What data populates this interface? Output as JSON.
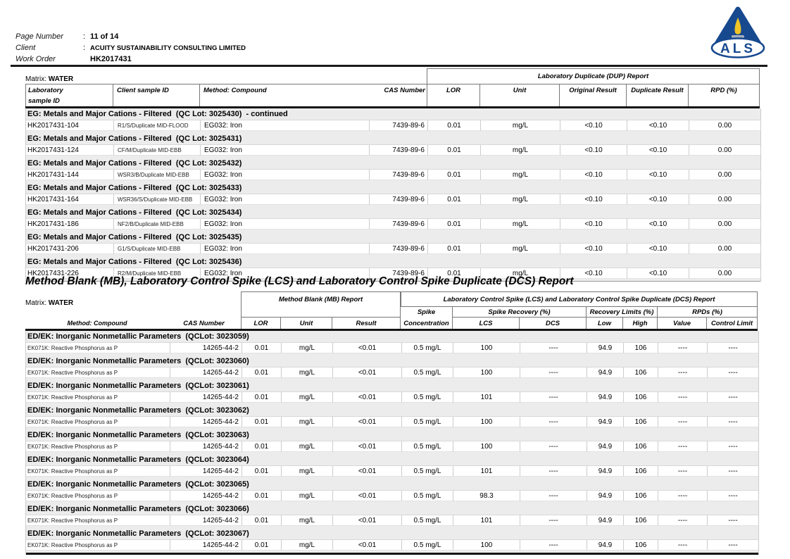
{
  "header": {
    "rows": [
      {
        "label": "Page Number",
        "colon": ":",
        "value": "11 of 14"
      },
      {
        "label": "Client",
        "colon": ":",
        "value": "ACUITY SUSTAINABILITY CONSULTING LIMITED"
      },
      {
        "label": "Work Order",
        "colon": "",
        "value": "HK2017431"
      }
    ],
    "logo_text": "ALS",
    "logo_colors": {
      "blue": "#17498f",
      "flame_yellow": "#f0c425",
      "candle_gray": "#9aa5b5"
    }
  },
  "dup_table": {
    "matrix_label": "Matrix:",
    "matrix_value": "WATER",
    "group_band_title": "Laboratory Duplicate (DUP) Report",
    "columns": {
      "lab_id_line1": "Laboratory",
      "lab_id_line2": "sample ID",
      "client_id": "Client sample ID",
      "method": "Method: Compound",
      "cas": "CAS Number",
      "lor": "LOR",
      "unit": "Unit",
      "original": "Original Result",
      "duplicate": "Duplicate Result",
      "rpd": "RPD (%)"
    },
    "groups": [
      {
        "title": "EG: Metals and Major Cations - Filtered  (QC Lot: 3025430)  - continued",
        "rows": [
          {
            "lab_id": "HK2017431-104",
            "client_id": "R1/S/Duplicate MID-FLOOD",
            "method": "EG032: Iron",
            "cas": "7439-89-6",
            "lor": "0.01",
            "unit": "mg/L",
            "original": "<0.10",
            "duplicate": "<0.10",
            "rpd": "0.00"
          }
        ]
      },
      {
        "title": "EG: Metals and Major Cations - Filtered  (QC Lot: 3025431)",
        "rows": [
          {
            "lab_id": "HK2017431-124",
            "client_id": "CF/M/Duplicate MID-EBB",
            "method": "EG032: Iron",
            "cas": "7439-89-6",
            "lor": "0.01",
            "unit": "mg/L",
            "original": "<0.10",
            "duplicate": "<0.10",
            "rpd": "0.00"
          }
        ]
      },
      {
        "title": "EG: Metals and Major Cations - Filtered  (QC Lot: 3025432)",
        "rows": [
          {
            "lab_id": "HK2017431-144",
            "client_id": "WSR3/B/Duplicate MID-EBB",
            "method": "EG032: Iron",
            "cas": "7439-89-6",
            "lor": "0.01",
            "unit": "mg/L",
            "original": "<0.10",
            "duplicate": "<0.10",
            "rpd": "0.00"
          }
        ]
      },
      {
        "title": "EG: Metals and Major Cations - Filtered  (QC Lot: 3025433)",
        "rows": [
          {
            "lab_id": "HK2017431-164",
            "client_id": "WSR36/S/Duplicate MID-EBB",
            "method": "EG032: Iron",
            "cas": "7439-89-6",
            "lor": "0.01",
            "unit": "mg/L",
            "original": "<0.10",
            "duplicate": "<0.10",
            "rpd": "0.00"
          }
        ]
      },
      {
        "title": "EG: Metals and Major Cations - Filtered  (QC Lot: 3025434)",
        "rows": [
          {
            "lab_id": "HK2017431-186",
            "client_id": "NF2/B/Duplicate MID-EBB",
            "method": "EG032: Iron",
            "cas": "7439-89-6",
            "lor": "0.01",
            "unit": "mg/L",
            "original": "<0.10",
            "duplicate": "<0.10",
            "rpd": "0.00"
          }
        ]
      },
      {
        "title": "EG: Metals and Major Cations - Filtered  (QC Lot: 3025435)",
        "rows": [
          {
            "lab_id": "HK2017431-206",
            "client_id": "G1/S/Duplicate MID-EBB",
            "method": "EG032: Iron",
            "cas": "7439-89-6",
            "lor": "0.01",
            "unit": "mg/L",
            "original": "<0.10",
            "duplicate": "<0.10",
            "rpd": "0.00"
          }
        ]
      },
      {
        "title": "EG: Metals and Major Cations - Filtered  (QC Lot: 3025436)",
        "rows": [
          {
            "lab_id": "HK2017431-226",
            "client_id": "R2/M/Duplicate MID-EBB",
            "method": "EG032: Iron",
            "cas": "7439-89-6",
            "lor": "0.01",
            "unit": "mg/L",
            "original": "<0.10",
            "duplicate": "<0.10",
            "rpd": "0.00"
          }
        ]
      }
    ]
  },
  "section_title": "Method Blank (MB), Laboratory Control Spike (LCS) and Laboratory Control Spike Duplicate (DCS) Report",
  "mb_table": {
    "matrix_label": "Matrix:",
    "matrix_value": "WATER",
    "mb_band_title": "Method Blank (MB) Report",
    "lcs_band_title": "Laboratory Control Spike (LCS) and Laboratory Control Spike Duplicate (DCS) Report",
    "sub_headers": {
      "spike_line1": "Spike",
      "spike_line2": "Concentration",
      "spike_recovery": "Spike Recovery (%)",
      "recovery_limits": "Recovery Limits (%)",
      "rpds": "RPDs (%)"
    },
    "columns": {
      "method": "Method: Compound",
      "cas": "CAS Number",
      "lor": "LOR",
      "unit": "Unit",
      "result": "Result",
      "lcs": "LCS",
      "dcs": "DCS",
      "low": "Low",
      "high": "High",
      "value": "Value",
      "control_limit": "Control Limit"
    },
    "groups": [
      {
        "title": "ED/EK: Inorganic Nonmetallic Parameters  (QCLot: 3023059)",
        "rows": [
          {
            "method": "EK071K: Reactive Phosphorus as P",
            "cas": "14265-44-2",
            "lor": "0.01",
            "unit": "mg/L",
            "result": "<0.01",
            "spike_concentration": "0.5 mg/L",
            "lcs": "100",
            "dcs": "----",
            "low": "94.9",
            "high": "106",
            "value": "----",
            "control_limit": "----"
          }
        ]
      },
      {
        "title": "ED/EK: Inorganic Nonmetallic Parameters  (QCLot: 3023060)",
        "rows": [
          {
            "method": "EK071K: Reactive Phosphorus as P",
            "cas": "14265-44-2",
            "lor": "0.01",
            "unit": "mg/L",
            "result": "<0.01",
            "spike_concentration": "0.5 mg/L",
            "lcs": "100",
            "dcs": "----",
            "low": "94.9",
            "high": "106",
            "value": "----",
            "control_limit": "----"
          }
        ]
      },
      {
        "title": "ED/EK: Inorganic Nonmetallic Parameters  (QCLot: 3023061)",
        "rows": [
          {
            "method": "EK071K: Reactive Phosphorus as P",
            "cas": "14265-44-2",
            "lor": "0.01",
            "unit": "mg/L",
            "result": "<0.01",
            "spike_concentration": "0.5 mg/L",
            "lcs": "101",
            "dcs": "----",
            "low": "94.9",
            "high": "106",
            "value": "----",
            "control_limit": "----"
          }
        ]
      },
      {
        "title": "ED/EK: Inorganic Nonmetallic Parameters  (QCLot: 3023062)",
        "rows": [
          {
            "method": "EK071K: Reactive Phosphorus as P",
            "cas": "14265-44-2",
            "lor": "0.01",
            "unit": "mg/L",
            "result": "<0.01",
            "spike_concentration": "0.5 mg/L",
            "lcs": "100",
            "dcs": "----",
            "low": "94.9",
            "high": "106",
            "value": "----",
            "control_limit": "----"
          }
        ]
      },
      {
        "title": "ED/EK: Inorganic Nonmetallic Parameters  (QCLot: 3023063)",
        "rows": [
          {
            "method": "EK071K: Reactive Phosphorus as P",
            "cas": "14265-44-2",
            "lor": "0.01",
            "unit": "mg/L",
            "result": "<0.01",
            "spike_concentration": "0.5 mg/L",
            "lcs": "100",
            "dcs": "----",
            "low": "94.9",
            "high": "106",
            "value": "----",
            "control_limit": "----"
          }
        ]
      },
      {
        "title": "ED/EK: Inorganic Nonmetallic Parameters  (QCLot: 3023064)",
        "rows": [
          {
            "method": "EK071K: Reactive Phosphorus as P",
            "cas": "14265-44-2",
            "lor": "0.01",
            "unit": "mg/L",
            "result": "<0.01",
            "spike_concentration": "0.5 mg/L",
            "lcs": "101",
            "dcs": "----",
            "low": "94.9",
            "high": "106",
            "value": "----",
            "control_limit": "----"
          }
        ]
      },
      {
        "title": "ED/EK: Inorganic Nonmetallic Parameters  (QCLot: 3023065)",
        "rows": [
          {
            "method": "EK071K: Reactive Phosphorus as P",
            "cas": "14265-44-2",
            "lor": "0.01",
            "unit": "mg/L",
            "result": "<0.01",
            "spike_concentration": "0.5 mg/L",
            "lcs": "98.3",
            "dcs": "----",
            "low": "94.9",
            "high": "106",
            "value": "----",
            "control_limit": "----"
          }
        ]
      },
      {
        "title": "ED/EK: Inorganic Nonmetallic Parameters  (QCLot: 3023066)",
        "rows": [
          {
            "method": "EK071K: Reactive Phosphorus as P",
            "cas": "14265-44-2",
            "lor": "0.01",
            "unit": "mg/L",
            "result": "<0.01",
            "spike_concentration": "0.5 mg/L",
            "lcs": "101",
            "dcs": "----",
            "low": "94.9",
            "high": "106",
            "value": "----",
            "control_limit": "----"
          }
        ]
      },
      {
        "title": "ED/EK: Inorganic Nonmetallic Parameters  (QCLot: 3023067)",
        "rows": [
          {
            "method": "EK071K: Reactive Phosphorus as P",
            "cas": "14265-44-2",
            "lor": "0.01",
            "unit": "mg/L",
            "result": "<0.01",
            "spike_concentration": "0.5 mg/L",
            "lcs": "100",
            "dcs": "----",
            "low": "94.9",
            "high": "106",
            "value": "----",
            "control_limit": "----"
          }
        ]
      }
    ]
  }
}
